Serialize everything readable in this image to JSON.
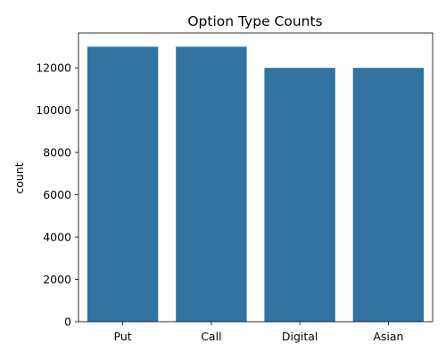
{
  "chart_data": {
    "type": "bar",
    "title": "Option Type Counts",
    "xlabel": "",
    "ylabel": "count",
    "categories": [
      "Put",
      "Call",
      "Digital",
      "Asian"
    ],
    "values": [
      13000,
      13000,
      12000,
      12000
    ],
    "ylim": [
      0,
      13650
    ],
    "yticks": [
      0,
      2000,
      4000,
      6000,
      8000,
      10000,
      12000
    ],
    "ytick_labels": [
      "0",
      "2000",
      "4000",
      "6000",
      "8000",
      "10000",
      "12000"
    ],
    "bar_color": "#3274a1",
    "grid": false,
    "legend": "none"
  }
}
